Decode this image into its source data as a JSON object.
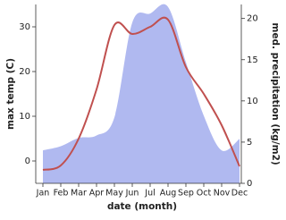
{
  "chart_data": {
    "type": "line-area",
    "xlabel": "date (month)",
    "ylabel": "max temp (C)",
    "y2label": "med. precipitation (kg/m2)",
    "categories": [
      "Jan",
      "Feb",
      "Mar",
      "Apr",
      "May",
      "Jun",
      "Jul",
      "Aug",
      "Sep",
      "Oct",
      "Nov",
      "Dec"
    ],
    "series": [
      {
        "name": "max temp",
        "kind": "line",
        "color": "#c0504f",
        "values": [
          -2,
          -1,
          5,
          16,
          30.4,
          28.4,
          30,
          31.6,
          21,
          15,
          8,
          -1.2
        ]
      },
      {
        "name": "med. precipitation",
        "kind": "area",
        "axis": "y2",
        "color": "#b0b9f0",
        "values": [
          4,
          4.5,
          5.5,
          5.8,
          8,
          19.5,
          20.6,
          21.4,
          14.7,
          8.2,
          4,
          5.4
        ]
      }
    ],
    "ylim": [
      -5,
      35
    ],
    "yticks": [
      0,
      10,
      20,
      30
    ],
    "y2lim": [
      0,
      21.7
    ],
    "y2ticks": [
      0,
      5,
      10,
      15,
      20
    ]
  }
}
